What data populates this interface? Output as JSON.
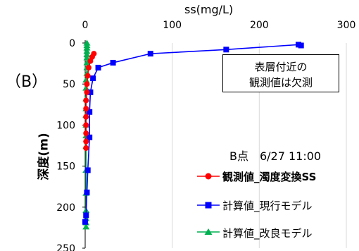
{
  "panel_label": "（B）",
  "annotation": [
    "表層付近の",
    "観測値は欠測"
  ],
  "site_label": "B点　6/27 11:00",
  "chart_data": {
    "type": "line",
    "orientation": "depth-profile",
    "xlabel": "ss(mg/L)",
    "ylabel": "深度(m)",
    "xlim": [
      0,
      300
    ],
    "ylim": [
      250,
      0
    ],
    "x_ticks": [
      "0",
      "100",
      "200",
      "300"
    ],
    "y_ticks": [
      "0",
      "50",
      "100",
      "150",
      "200",
      "250"
    ],
    "grid": "vertical",
    "legend_position": "bottom-right",
    "series": [
      {
        "name": "観測値_濁度変換SS",
        "color": "#ff0000",
        "marker": "circle",
        "bold": true,
        "points": [
          [
            10,
            13
          ],
          [
            8,
            17
          ],
          [
            6,
            22
          ],
          [
            4,
            30
          ],
          [
            3,
            40
          ],
          [
            2,
            50
          ],
          [
            2,
            60
          ],
          [
            1,
            70
          ],
          [
            1,
            80
          ],
          [
            1,
            90
          ],
          [
            1,
            100
          ],
          [
            1,
            110
          ],
          [
            1,
            120
          ],
          [
            1,
            128
          ]
        ]
      },
      {
        "name": "計算値_現行モデル",
        "color": "#0000ff",
        "marker": "square",
        "bold": false,
        "points": [
          [
            248,
            3
          ],
          [
            245,
            2
          ],
          [
            162,
            8
          ],
          [
            75,
            13
          ],
          [
            32,
            24
          ],
          [
            15,
            30
          ],
          [
            9,
            43
          ],
          [
            6,
            60
          ],
          [
            5,
            84
          ],
          [
            5,
            115
          ],
          [
            3,
            155
          ],
          [
            2,
            182
          ],
          [
            1,
            210
          ],
          [
            0,
            218
          ]
        ]
      },
      {
        "name": "計算値_改良モデル",
        "color": "#00b050",
        "marker": "triangle",
        "bold": false,
        "points": [
          [
            2,
            0
          ],
          [
            2,
            3
          ],
          [
            2,
            6
          ],
          [
            2,
            10
          ],
          [
            2,
            14
          ],
          [
            2,
            18
          ],
          [
            2,
            24
          ],
          [
            2,
            30
          ],
          [
            2,
            37
          ],
          [
            1,
            45
          ],
          [
            1,
            55
          ],
          [
            1,
            68
          ],
          [
            1,
            80
          ],
          [
            1,
            88
          ],
          [
            1,
            100
          ],
          [
            1,
            113
          ],
          [
            1,
            126
          ],
          [
            1,
            155
          ],
          [
            1,
            183
          ],
          [
            1,
            204
          ],
          [
            1,
            214
          ],
          [
            1,
            219
          ],
          [
            1,
            224
          ]
        ]
      }
    ]
  }
}
